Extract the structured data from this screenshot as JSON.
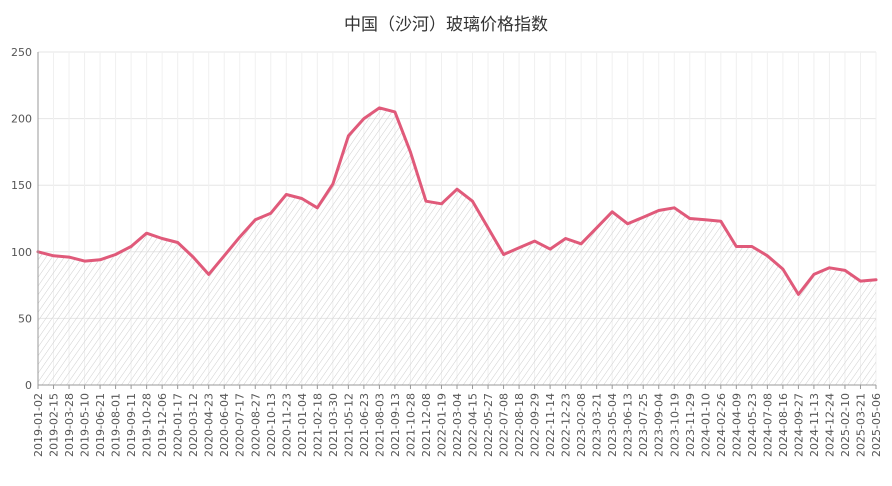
{
  "chart_data": {
    "type": "area",
    "title": "中国（沙河）玻璃价格指数",
    "xlabel": "",
    "ylabel": "",
    "ylim": [
      0,
      250
    ],
    "yticks": [
      0,
      50,
      100,
      150,
      200,
      250
    ],
    "grid": true,
    "legend": "none",
    "colors": {
      "line": "#e05a7a",
      "fill_hatch": "#c8c8c8",
      "grid": "#e6e6e6",
      "axis": "#999999"
    },
    "xtick_labels": [
      "2019-01-02",
      "2019-02-15",
      "2019-03-28",
      "2019-05-10",
      "2019-06-21",
      "2019-08-01",
      "2019-09-11",
      "2019-10-28",
      "2019-12-06",
      "2020-01-17",
      "2020-03-12",
      "2020-04-23",
      "2020-06-04",
      "2020-07-17",
      "2020-08-27",
      "2020-10-13",
      "2020-11-23",
      "2021-01-04",
      "2021-02-18",
      "2021-03-30",
      "2021-05-12",
      "2021-06-23",
      "2021-08-03",
      "2021-09-13",
      "2021-10-28",
      "2021-12-08",
      "2022-01-19",
      "2022-03-04",
      "2022-04-15",
      "2022-05-27",
      "2022-07-08",
      "2022-08-18",
      "2022-09-29",
      "2022-11-14",
      "2022-12-23",
      "2023-02-08",
      "2023-03-21",
      "2023-05-04",
      "2023-06-13",
      "2023-07-25",
      "2023-09-04",
      "2023-10-19",
      "2023-11-29",
      "2024-01-10",
      "2024-02-26",
      "2024-04-09",
      "2024-05-23",
      "2024-07-08",
      "2024-08-16",
      "2024-09-27",
      "2024-11-13",
      "2024-12-24",
      "2025-02-10",
      "2025-03-21",
      "2025-05-06"
    ],
    "series": [
      {
        "x": [
          "2019-01-02",
          "2019-02-15",
          "2019-03-28",
          "2019-05-10",
          "2019-06-21",
          "2019-08-01",
          "2019-09-11",
          "2019-10-28",
          "2019-12-06",
          "2020-01-17",
          "2020-03-12",
          "2020-04-23",
          "2020-06-04",
          "2020-07-17",
          "2020-08-27",
          "2020-10-13",
          "2020-11-23",
          "2021-01-04",
          "2021-02-18",
          "2021-03-30",
          "2021-05-12",
          "2021-06-23",
          "2021-08-03",
          "2021-09-13",
          "2021-10-28",
          "2021-12-08",
          "2022-01-19",
          "2022-03-04",
          "2022-04-15",
          "2022-05-27",
          "2022-07-08",
          "2022-08-18",
          "2022-09-29",
          "2022-11-14",
          "2022-12-23",
          "2023-02-08",
          "2023-03-21",
          "2023-05-04",
          "2023-06-13",
          "2023-07-25",
          "2023-09-04",
          "2023-10-19",
          "2023-11-29",
          "2024-01-10",
          "2024-02-26",
          "2024-04-09",
          "2024-05-23",
          "2024-07-08",
          "2024-08-16",
          "2024-09-27",
          "2024-11-13",
          "2024-12-24",
          "2025-02-10",
          "2025-03-21",
          "2025-05-06"
        ],
        "values": [
          100,
          97,
          96,
          93,
          94,
          98,
          104,
          114,
          110,
          107,
          96,
          83,
          97,
          111,
          124,
          129,
          143,
          140,
          133,
          151,
          187,
          200,
          208,
          205,
          175,
          138,
          136,
          147,
          138,
          118,
          98,
          103,
          108,
          102,
          110,
          106,
          118,
          130,
          121,
          126,
          131,
          133,
          125,
          124,
          123,
          104,
          104,
          97,
          87,
          68,
          83,
          88,
          86,
          78,
          79
        ]
      }
    ]
  }
}
